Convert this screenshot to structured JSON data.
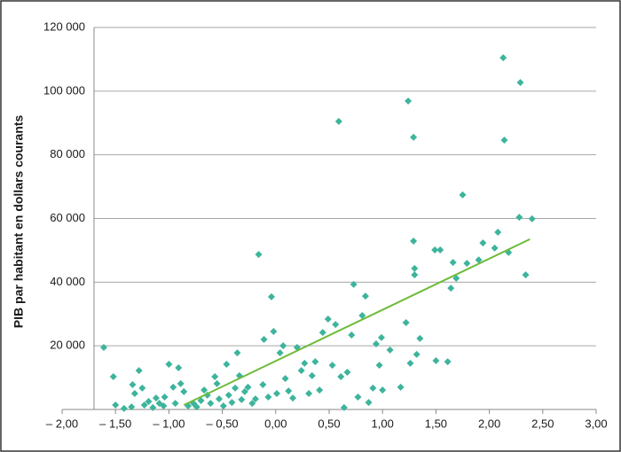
{
  "chart_data": {
    "type": "scatter",
    "y_label": "PIB par habitant en dollars courants",
    "xlim": [
      -2,
      3
    ],
    "xticks": [
      {
        "value": -2,
        "label": "– 2,00"
      },
      {
        "value": -1.5,
        "label": "– 1,50"
      },
      {
        "value": -1,
        "label": "– 1,00"
      },
      {
        "value": -0.5,
        "label": "– 0,50"
      },
      {
        "value": 0,
        "label": "0,00"
      },
      {
        "value": 0.5,
        "label": "0,50"
      },
      {
        "value": 1,
        "label": "1,00"
      },
      {
        "value": 1.5,
        "label": "1,50"
      },
      {
        "value": 2,
        "label": "2,00"
      },
      {
        "value": 2.5,
        "label": "2,50"
      },
      {
        "value": 3,
        "label": "3,00"
      }
    ],
    "ylim": [
      0,
      120000
    ],
    "yticks": [
      {
        "value": 20000,
        "label": "20 000"
      },
      {
        "value": 40000,
        "label": "40 000"
      },
      {
        "value": 60000,
        "label": "60 000"
      },
      {
        "value": 80000,
        "label": "80 000"
      },
      {
        "value": 100000,
        "label": "100 000"
      },
      {
        "value": 120000,
        "label": "120 000"
      }
    ],
    "grid": true,
    "series": [
      {
        "type": "scatter",
        "color": "#3db49c",
        "x": [
          -1.61,
          -1.52,
          -1.5,
          -1.42,
          -1.35,
          -1.34,
          -1.32,
          -1.28,
          -1.25,
          -1.23,
          -1.19,
          -1.15,
          -1.12,
          -1.09,
          -1.05,
          -1.04,
          -1.0,
          -0.96,
          -0.94,
          -0.91,
          -0.89,
          -0.86,
          -0.82,
          -0.77,
          -0.74,
          -0.7,
          -0.67,
          -0.64,
          -0.61,
          -0.57,
          -0.55,
          -0.53,
          -0.49,
          -0.46,
          -0.44,
          -0.41,
          -0.38,
          -0.36,
          -0.34,
          -0.32,
          -0.29,
          -0.26,
          -0.22,
          -0.19,
          -0.16,
          -0.12,
          -0.11,
          -0.07,
          -0.04,
          -0.02,
          0.01,
          0.04,
          0.07,
          0.09,
          0.12,
          0.16,
          0.2,
          0.24,
          0.27,
          0.31,
          0.34,
          0.37,
          0.41,
          0.44,
          0.49,
          0.53,
          0.56,
          0.59,
          0.61,
          0.64,
          0.67,
          0.71,
          0.73,
          0.77,
          0.81,
          0.84,
          0.87,
          0.91,
          0.94,
          0.97,
          0.99,
          1.0,
          1.07,
          1.17,
          1.22,
          1.24,
          1.26,
          1.29,
          1.29,
          1.3,
          1.3,
          1.32,
          1.35,
          1.49,
          1.5,
          1.54,
          1.61,
          1.64,
          1.66,
          1.69,
          1.75,
          1.79,
          1.9,
          1.94,
          2.05,
          2.08,
          2.13,
          2.14,
          2.18,
          2.28,
          2.29,
          2.34,
          2.4
        ],
        "values": [
          19500,
          10300,
          1400,
          300,
          800,
          7800,
          5000,
          12200,
          6700,
          1400,
          2500,
          600,
          3600,
          1900,
          1100,
          3900,
          14200,
          7000,
          1900,
          13100,
          8100,
          5600,
          1100,
          1900,
          800,
          2800,
          6100,
          4500,
          1900,
          10300,
          8100,
          3300,
          1100,
          14200,
          4500,
          2200,
          6700,
          17800,
          10600,
          3100,
          5600,
          7000,
          1900,
          3300,
          48700,
          7800,
          22000,
          3900,
          35400,
          24500,
          5000,
          17800,
          20000,
          9700,
          5800,
          3600,
          19500,
          12200,
          14500,
          5000,
          10600,
          15000,
          6100,
          24200,
          28400,
          13900,
          26700,
          90500,
          10300,
          600,
          11700,
          23400,
          39300,
          3900,
          29500,
          35600,
          2200,
          6700,
          20600,
          13900,
          22600,
          6100,
          18700,
          7000,
          27300,
          96900,
          14500,
          85500,
          52900,
          44300,
          42300,
          17300,
          22300,
          50100,
          15300,
          50100,
          15000,
          38100,
          46200,
          41200,
          67400,
          45900,
          47000,
          52300,
          50700,
          55700,
          110500,
          84600,
          49300,
          60400,
          102700,
          42300,
          59900
        ]
      },
      {
        "type": "line",
        "color": "#6dbb3a",
        "x": [
          -0.86,
          2.38
        ],
        "values": [
          1400,
          53500
        ]
      }
    ]
  }
}
